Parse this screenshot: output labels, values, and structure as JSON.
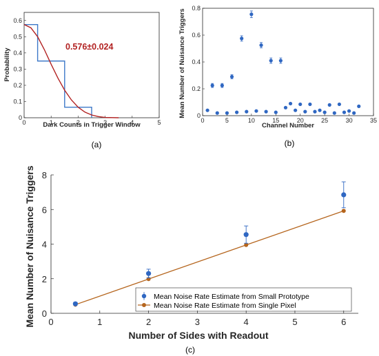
{
  "panel_labels": {
    "a": "(a)",
    "b": "(b)",
    "c": "(c)"
  },
  "colors": {
    "axis": "#262626",
    "blue": "#2f67c2",
    "brown": "#b5651d",
    "red": "#b22222",
    "hist": "#3c78c8"
  },
  "chart_data": [
    {
      "id": "a",
      "type": "line",
      "xlabel": "Dark Counts in Trigger Window",
      "ylabel": "Probability",
      "xlim": [
        0,
        5
      ],
      "ylim": [
        0,
        0.65
      ],
      "xticks": [
        0,
        1,
        2,
        3,
        4,
        5
      ],
      "yticks": [
        0,
        0.1,
        0.2,
        0.3,
        0.4,
        0.5,
        0.6
      ],
      "annotation": "0.576±0.024",
      "grid": false,
      "histogram": {
        "edges": [
          0,
          0.5,
          1.5,
          2.5
        ],
        "values": [
          0.575,
          0.35,
          0.065
        ]
      },
      "curve": {
        "x": [
          0,
          0.25,
          0.5,
          0.75,
          1.0,
          1.25,
          1.5,
          1.75,
          2.0,
          2.25,
          2.5,
          2.75,
          3.0,
          3.5
        ],
        "y": [
          0.575,
          0.555,
          0.5,
          0.42,
          0.33,
          0.245,
          0.17,
          0.11,
          0.065,
          0.035,
          0.017,
          0.007,
          0.002,
          0.0
        ]
      }
    },
    {
      "id": "b",
      "type": "scatter",
      "xlabel": "Channel Number",
      "ylabel": "Mean Number of Nuisance Triggers",
      "xlim": [
        0,
        35
      ],
      "ylim": [
        0,
        0.8
      ],
      "xticks": [
        0,
        5,
        10,
        15,
        20,
        25,
        30,
        35
      ],
      "yticks": [
        0,
        0.2,
        0.4,
        0.6,
        0.8
      ],
      "grid": false,
      "points": [
        {
          "x": 1,
          "y": 0.04,
          "err": 0
        },
        {
          "x": 2,
          "y": 0.225,
          "err": 0.015
        },
        {
          "x": 3,
          "y": 0.02,
          "err": 0
        },
        {
          "x": 4,
          "y": 0.225,
          "err": 0.015
        },
        {
          "x": 5,
          "y": 0.02,
          "err": 0
        },
        {
          "x": 6,
          "y": 0.29,
          "err": 0.015
        },
        {
          "x": 7,
          "y": 0.025,
          "err": 0
        },
        {
          "x": 8,
          "y": 0.575,
          "err": 0.02
        },
        {
          "x": 9,
          "y": 0.03,
          "err": 0
        },
        {
          "x": 10,
          "y": 0.755,
          "err": 0.025
        },
        {
          "x": 11,
          "y": 0.035,
          "err": 0
        },
        {
          "x": 12,
          "y": 0.525,
          "err": 0.02
        },
        {
          "x": 13,
          "y": 0.03,
          "err": 0
        },
        {
          "x": 14,
          "y": 0.41,
          "err": 0.02
        },
        {
          "x": 15,
          "y": 0.025,
          "err": 0
        },
        {
          "x": 16,
          "y": 0.41,
          "err": 0.02
        },
        {
          "x": 17,
          "y": 0.06,
          "err": 0
        },
        {
          "x": 18,
          "y": 0.09,
          "err": 0
        },
        {
          "x": 19,
          "y": 0.04,
          "err": 0
        },
        {
          "x": 20,
          "y": 0.085,
          "err": 0
        },
        {
          "x": 21,
          "y": 0.03,
          "err": 0
        },
        {
          "x": 22,
          "y": 0.085,
          "err": 0
        },
        {
          "x": 23,
          "y": 0.03,
          "err": 0
        },
        {
          "x": 24,
          "y": 0.04,
          "err": 0
        },
        {
          "x": 25,
          "y": 0.025,
          "err": 0
        },
        {
          "x": 26,
          "y": 0.08,
          "err": 0
        },
        {
          "x": 27,
          "y": 0.02,
          "err": 0
        },
        {
          "x": 28,
          "y": 0.085,
          "err": 0
        },
        {
          "x": 29,
          "y": 0.025,
          "err": 0
        },
        {
          "x": 30,
          "y": 0.035,
          "err": 0
        },
        {
          "x": 31,
          "y": 0.02,
          "err": 0
        },
        {
          "x": 32,
          "y": 0.07,
          "err": 0
        }
      ]
    },
    {
      "id": "c",
      "type": "line",
      "xlabel": "Number of Sides with Readout",
      "ylabel": "Mean Number of Nuisance Triggers",
      "xlim": [
        0,
        6.3
      ],
      "ylim": [
        0,
        8
      ],
      "xticks": [
        0,
        1,
        2,
        3,
        4,
        5,
        6
      ],
      "yticks": [
        0,
        2,
        4,
        6,
        8
      ],
      "grid": false,
      "legend_position": "bottom-right",
      "series": [
        {
          "name": "Mean Noise Rate Estimate from Small Prototype",
          "kind": "errorbar",
          "x": [
            0.5,
            2,
            4,
            6
          ],
          "y": [
            0.55,
            2.3,
            4.55,
            6.85
          ],
          "err": [
            0.08,
            0.25,
            0.5,
            0.75
          ]
        },
        {
          "name": "Mean Noise Rate Estimate from Single Pixel",
          "kind": "line",
          "x": [
            0.5,
            2,
            4,
            6
          ],
          "y": [
            0.5,
            1.98,
            3.95,
            5.92
          ]
        }
      ]
    }
  ]
}
